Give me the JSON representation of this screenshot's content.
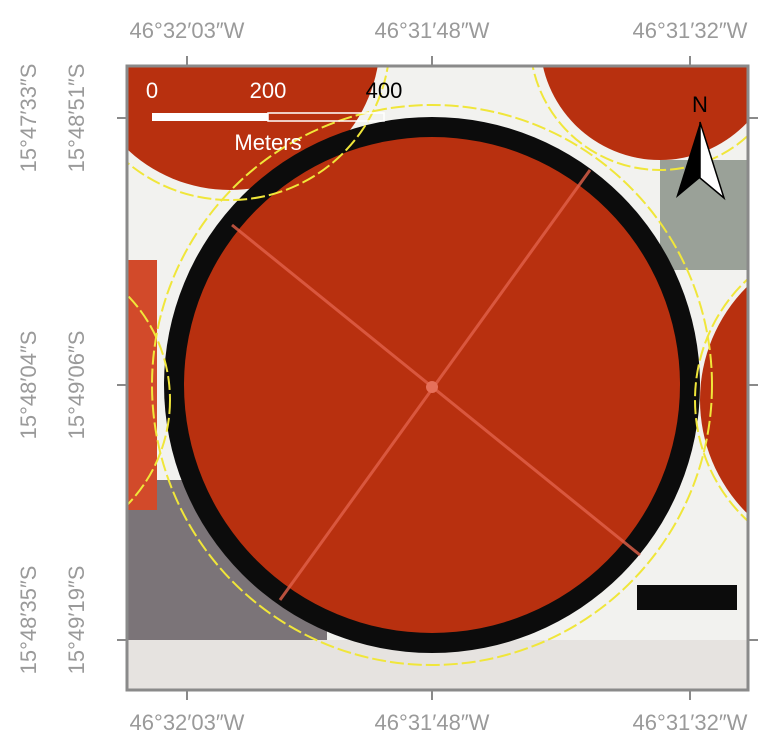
{
  "map": {
    "top_labels": [
      "46°32′03″W",
      "46°31′48″W",
      "46°31′32″W"
    ],
    "bottom_labels": [
      "46°32′03″W",
      "46°31′48″W",
      "46°31′32″W"
    ],
    "left_outer_labels": [
      "15°47′33″S",
      "15°48′04″S",
      "15°48′35″S"
    ],
    "left_inner_labels": [
      "15°48′51″S",
      "15°49′06″S",
      "15°49′19″S"
    ],
    "scale_bar": {
      "labels": [
        "0",
        "200",
        "400"
      ],
      "unit": "Meters"
    },
    "north_arrow": "N"
  }
}
